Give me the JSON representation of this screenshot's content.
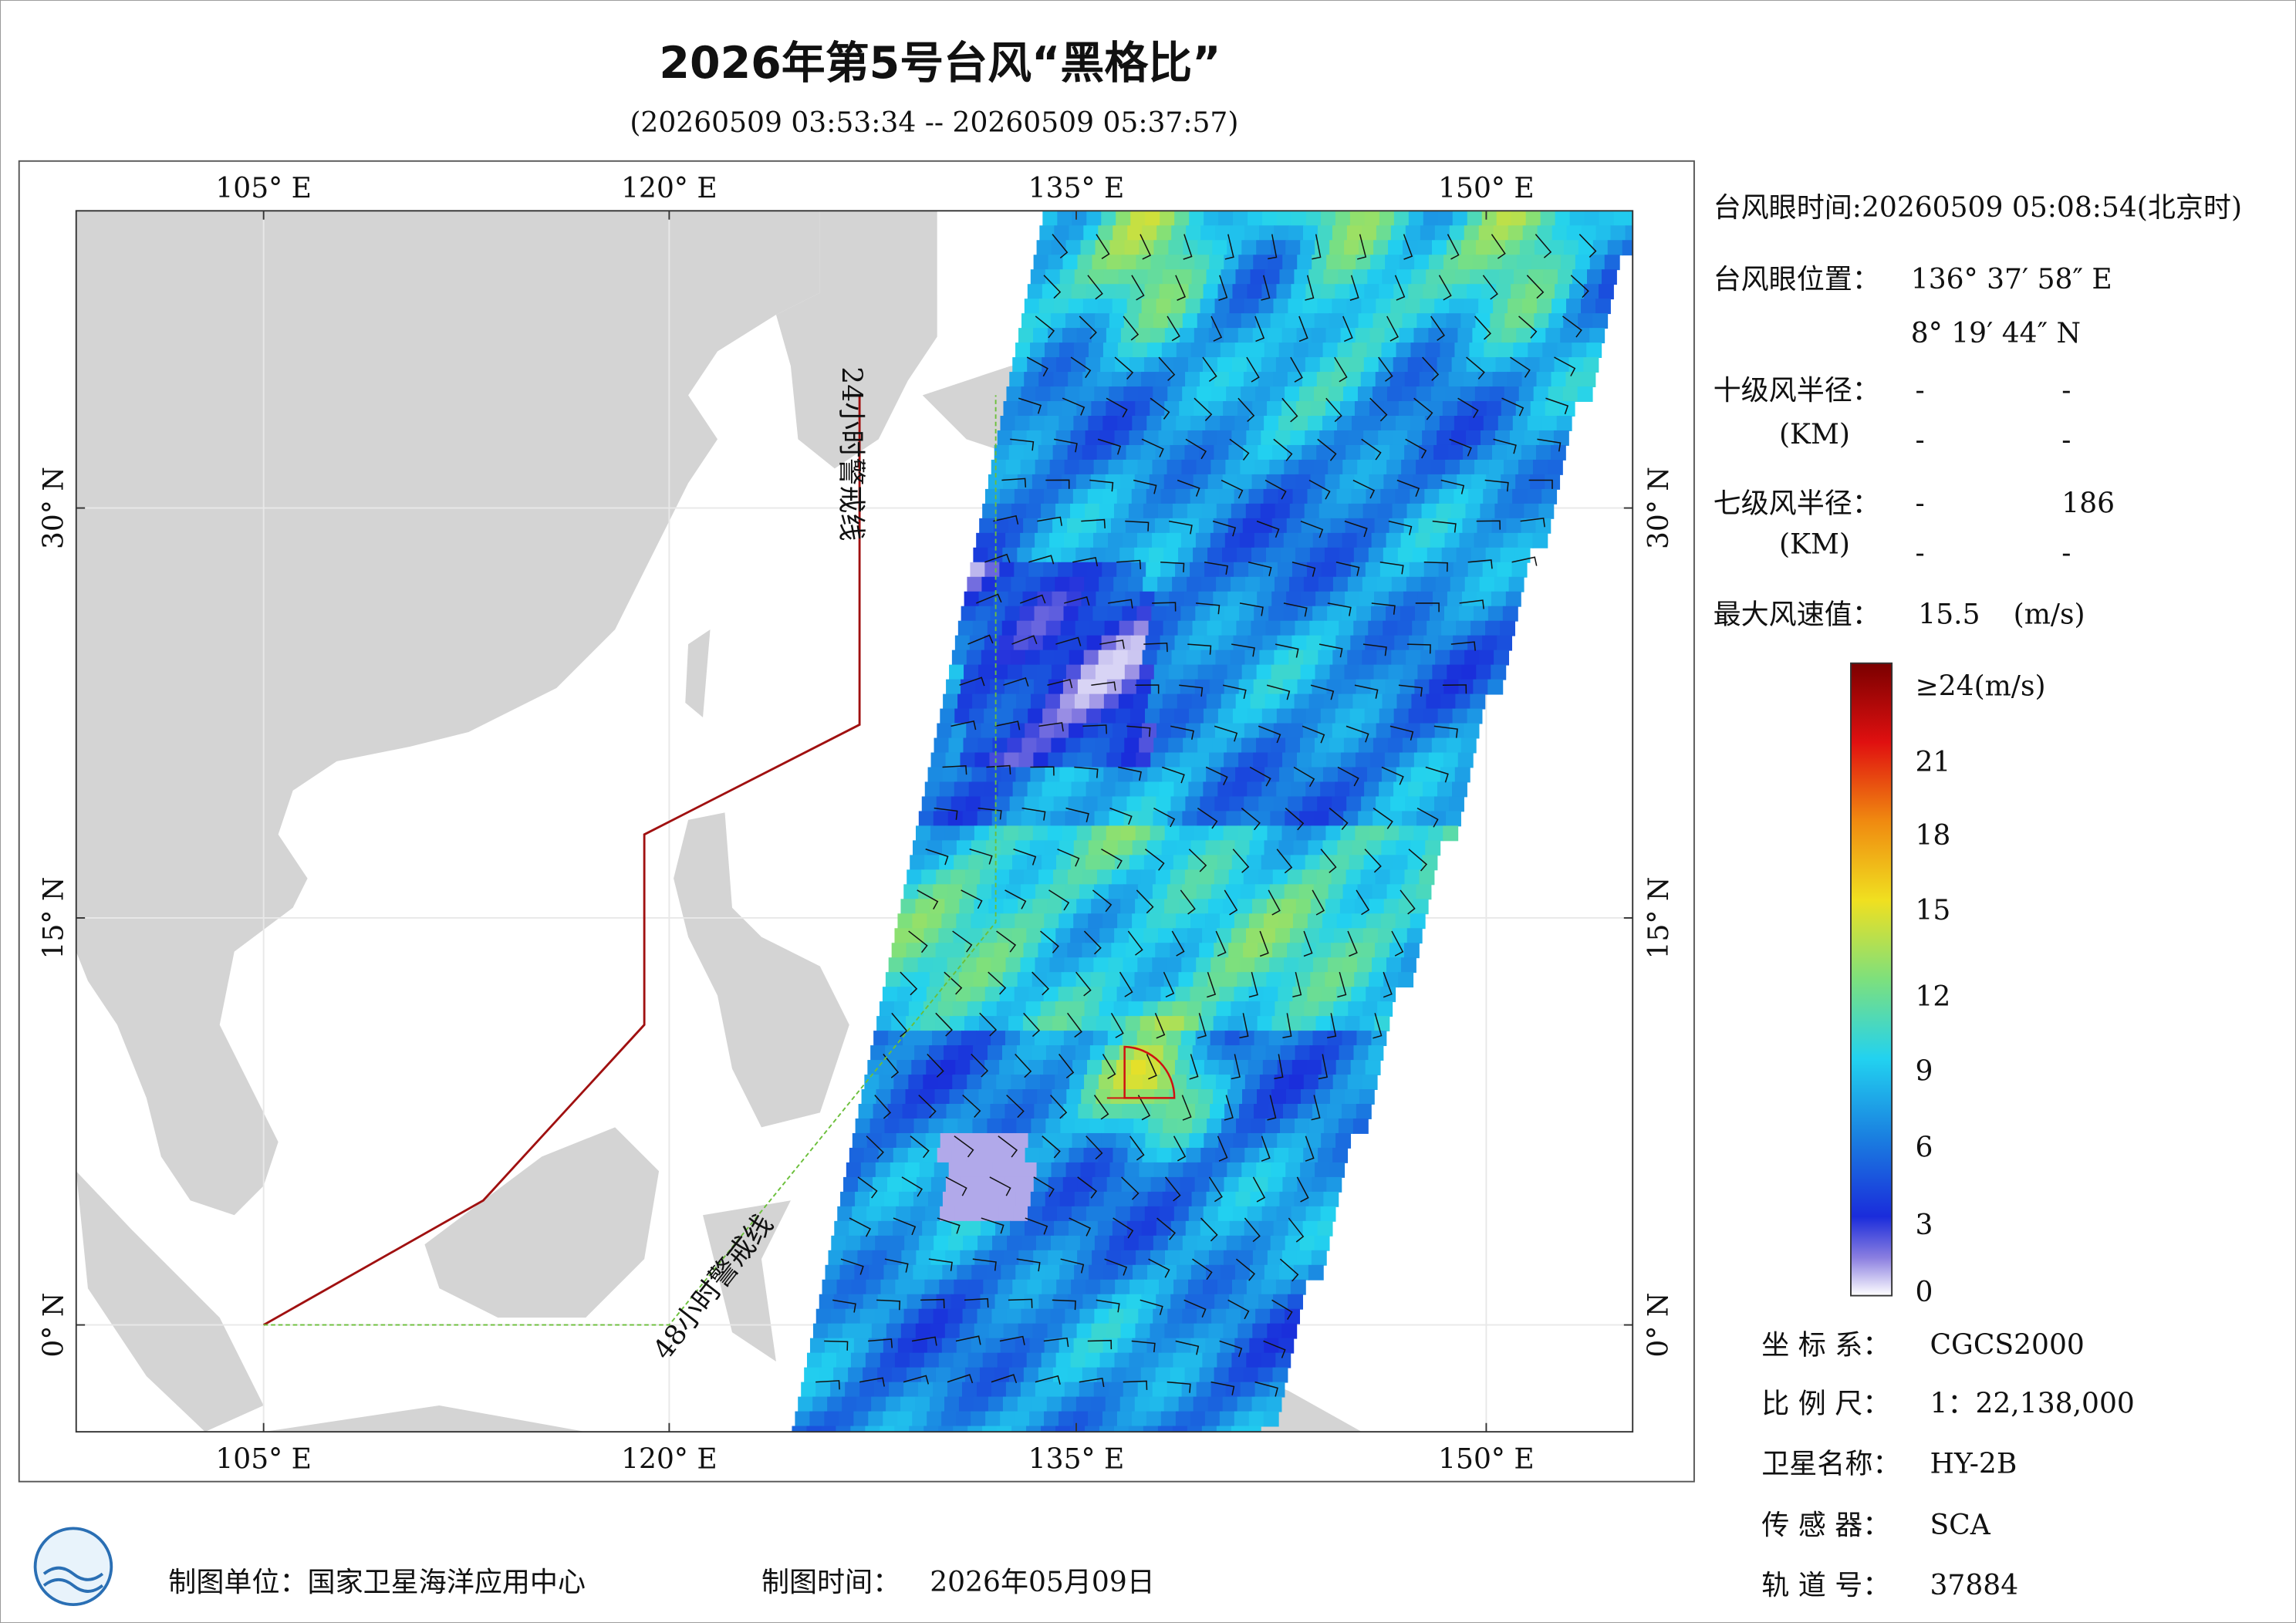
{
  "header": {
    "title": "2026年第5号台风“黑格比”",
    "subtitle": "(20260509 03:53:34 -- 20260509 05:37:57)"
  },
  "map": {
    "lon_labels": [
      "105° E",
      "120° E",
      "135° E",
      "150° E"
    ],
    "lat_labels": [
      "30° N",
      "15° N",
      "0° N"
    ],
    "warning_lines": [
      "24小时警戒线",
      "48小时警戒线"
    ]
  },
  "info": {
    "eye_time": "台风眼时间:20260509 05:08:54(北京时)",
    "eye_position_label": "台风眼位置：",
    "eye_lon": "136° 37′ 58″ E",
    "eye_lat": "8° 19′ 44″ N",
    "r10_label": "十级风半径：",
    "r10_unit": "(KM)",
    "r10_values": [
      "-",
      "-",
      "-",
      "-"
    ],
    "r7_label": "七级风半径：",
    "r7_unit": "(KM)",
    "r7_values": [
      "-",
      "186",
      "-",
      "-"
    ],
    "max_wind_label": "最大风速值：",
    "max_wind": "15.5",
    "max_wind_unit": "(m/s)"
  },
  "colorbar": {
    "labels": [
      "≥24(m/s)",
      "21",
      "18",
      "15",
      "12",
      "9",
      "6",
      "3",
      "0"
    ]
  },
  "meta": {
    "rows": [
      [
        "坐 标 系：",
        "CGCS2000"
      ],
      [
        "比 例 尺：",
        "1：22,138,000"
      ],
      [
        "卫星名称：",
        "HY-2B"
      ],
      [
        "传 感 器：",
        "SCA"
      ],
      [
        "轨 道 号：",
        "37884"
      ]
    ]
  },
  "footer": {
    "unit_label": "制图单位：国家卫星海洋应用中心",
    "time_label": "制图时间：",
    "time": "2026年05月09日"
  }
}
